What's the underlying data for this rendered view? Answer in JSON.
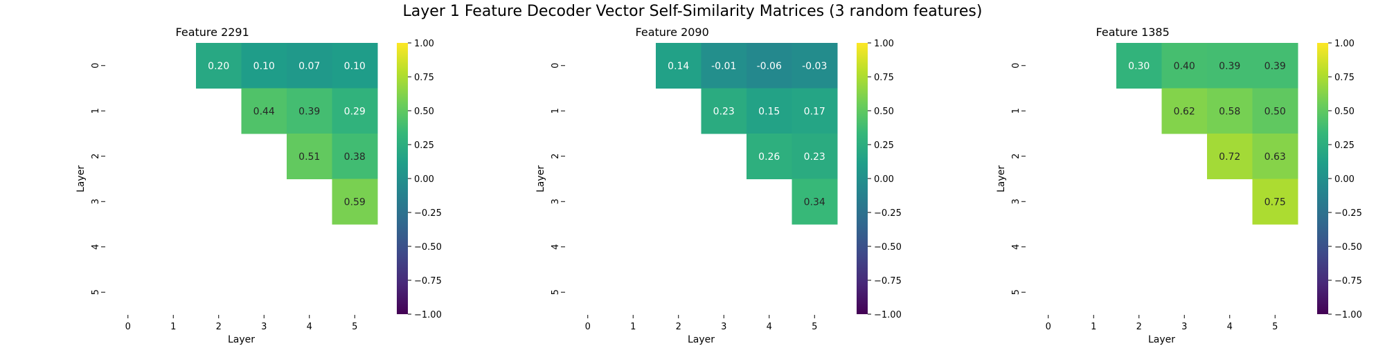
{
  "figure": {
    "suptitle": "Layer 1 Feature Decoder Vector Self-Similarity Matrices (3 random features)"
  },
  "chart_data": [
    {
      "type": "heatmap",
      "title": "Feature 2291",
      "xlabel": "Layer",
      "ylabel": "Layer",
      "x_categories": [
        "0",
        "1",
        "2",
        "3",
        "4",
        "5"
      ],
      "y_categories": [
        "0",
        "1",
        "2",
        "3",
        "4",
        "5"
      ],
      "cells": [
        {
          "row": 0,
          "col": 2,
          "value": 0.2,
          "label": "0.20"
        },
        {
          "row": 0,
          "col": 3,
          "value": 0.1,
          "label": "0.10"
        },
        {
          "row": 0,
          "col": 4,
          "value": 0.07,
          "label": "0.07"
        },
        {
          "row": 0,
          "col": 5,
          "value": 0.1,
          "label": "0.10"
        },
        {
          "row": 1,
          "col": 3,
          "value": 0.44,
          "label": "0.44"
        },
        {
          "row": 1,
          "col": 4,
          "value": 0.39,
          "label": "0.39"
        },
        {
          "row": 1,
          "col": 5,
          "value": 0.29,
          "label": "0.29"
        },
        {
          "row": 2,
          "col": 4,
          "value": 0.51,
          "label": "0.51"
        },
        {
          "row": 2,
          "col": 5,
          "value": 0.38,
          "label": "0.38"
        },
        {
          "row": 3,
          "col": 5,
          "value": 0.59,
          "label": "0.59"
        }
      ],
      "colorbar": {
        "colormap": "viridis",
        "vmin": -1.0,
        "vmax": 1.0,
        "ticks": [
          "1.00",
          "0.75",
          "0.50",
          "0.25",
          "0.00",
          "−0.25",
          "−0.50",
          "−0.75",
          "−1.00"
        ]
      }
    },
    {
      "type": "heatmap",
      "title": "Feature 2090",
      "xlabel": "Layer",
      "ylabel": "Layer",
      "x_categories": [
        "0",
        "1",
        "2",
        "3",
        "4",
        "5"
      ],
      "y_categories": [
        "0",
        "1",
        "2",
        "3",
        "4",
        "5"
      ],
      "cells": [
        {
          "row": 0,
          "col": 2,
          "value": 0.14,
          "label": "0.14"
        },
        {
          "row": 0,
          "col": 3,
          "value": -0.01,
          "label": "-0.01"
        },
        {
          "row": 0,
          "col": 4,
          "value": -0.06,
          "label": "-0.06"
        },
        {
          "row": 0,
          "col": 5,
          "value": -0.03,
          "label": "-0.03"
        },
        {
          "row": 1,
          "col": 3,
          "value": 0.23,
          "label": "0.23"
        },
        {
          "row": 1,
          "col": 4,
          "value": 0.15,
          "label": "0.15"
        },
        {
          "row": 1,
          "col": 5,
          "value": 0.17,
          "label": "0.17"
        },
        {
          "row": 2,
          "col": 4,
          "value": 0.26,
          "label": "0.26"
        },
        {
          "row": 2,
          "col": 5,
          "value": 0.23,
          "label": "0.23"
        },
        {
          "row": 3,
          "col": 5,
          "value": 0.34,
          "label": "0.34"
        }
      ],
      "colorbar": {
        "colormap": "viridis",
        "vmin": -1.0,
        "vmax": 1.0,
        "ticks": [
          "1.00",
          "0.75",
          "0.50",
          "0.25",
          "0.00",
          "−0.25",
          "−0.50",
          "−0.75",
          "−1.00"
        ]
      }
    },
    {
      "type": "heatmap",
      "title": "Feature 1385",
      "xlabel": "Layer",
      "ylabel": "Layer",
      "x_categories": [
        "0",
        "1",
        "2",
        "3",
        "4",
        "5"
      ],
      "y_categories": [
        "0",
        "1",
        "2",
        "3",
        "4",
        "5"
      ],
      "cells": [
        {
          "row": 0,
          "col": 2,
          "value": 0.3,
          "label": "0.30"
        },
        {
          "row": 0,
          "col": 3,
          "value": 0.4,
          "label": "0.40"
        },
        {
          "row": 0,
          "col": 4,
          "value": 0.39,
          "label": "0.39"
        },
        {
          "row": 0,
          "col": 5,
          "value": 0.39,
          "label": "0.39"
        },
        {
          "row": 1,
          "col": 3,
          "value": 0.62,
          "label": "0.62"
        },
        {
          "row": 1,
          "col": 4,
          "value": 0.58,
          "label": "0.58"
        },
        {
          "row": 1,
          "col": 5,
          "value": 0.5,
          "label": "0.50"
        },
        {
          "row": 2,
          "col": 4,
          "value": 0.72,
          "label": "0.72"
        },
        {
          "row": 2,
          "col": 5,
          "value": 0.63,
          "label": "0.63"
        },
        {
          "row": 3,
          "col": 5,
          "value": 0.75,
          "label": "0.75"
        }
      ],
      "colorbar": {
        "colormap": "viridis",
        "vmin": -1.0,
        "vmax": 1.0,
        "ticks": [
          "1.00",
          "0.75",
          "0.50",
          "0.25",
          "0.00",
          "−0.25",
          "−0.50",
          "−0.75",
          "−1.00"
        ]
      }
    }
  ]
}
